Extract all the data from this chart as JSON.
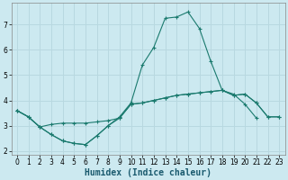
{
  "xlabel": "Humidex (Indice chaleur)",
  "background_color": "#cce9f0",
  "grid_color": "#b8d8e0",
  "line_color": "#1a7a6e",
  "x_values": [
    0,
    1,
    2,
    3,
    4,
    5,
    6,
    7,
    8,
    9,
    10,
    11,
    12,
    13,
    14,
    15,
    16,
    17,
    18,
    19,
    20,
    21,
    22,
    23
  ],
  "line1_y": [
    3.6,
    3.35,
    2.95,
    2.65,
    2.4,
    2.3,
    2.25,
    2.6,
    3.0,
    3.35,
    3.9,
    5.4,
    6.1,
    7.25,
    7.3,
    7.5,
    6.85,
    5.55,
    4.4,
    4.25,
    3.85,
    3.3,
    null,
    null
  ],
  "line2_y": [
    3.6,
    3.35,
    2.95,
    3.05,
    3.1,
    3.1,
    3.1,
    3.15,
    3.2,
    3.3,
    3.85,
    3.9,
    4.0,
    4.1,
    4.2,
    4.25,
    4.3,
    4.35,
    4.4,
    4.2,
    4.25,
    3.9,
    3.35,
    3.35
  ],
  "line3_y": [
    3.6,
    3.35,
    2.95,
    2.65,
    2.4,
    2.3,
    2.25,
    2.6,
    3.0,
    3.3,
    3.85,
    3.9,
    4.0,
    4.1,
    4.2,
    4.25,
    4.3,
    4.35,
    4.4,
    4.2,
    4.25,
    3.9,
    3.35,
    3.35
  ],
  "ylim": [
    1.85,
    7.85
  ],
  "xlim": [
    -0.5,
    23.5
  ],
  "yticks": [
    2,
    3,
    4,
    5,
    6,
    7
  ],
  "xticks": [
    0,
    1,
    2,
    3,
    4,
    5,
    6,
    7,
    8,
    9,
    10,
    11,
    12,
    13,
    14,
    15,
    16,
    17,
    18,
    19,
    20,
    21,
    22,
    23
  ]
}
